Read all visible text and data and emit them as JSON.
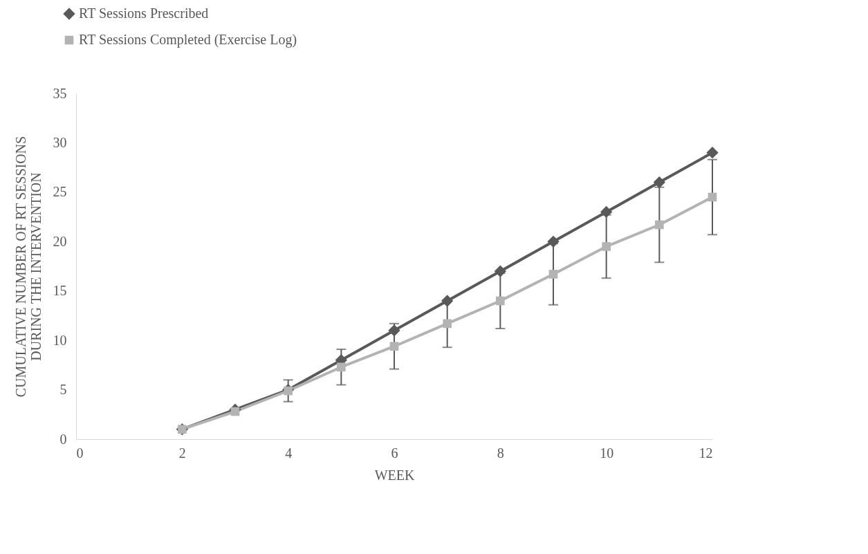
{
  "chart_data": {
    "type": "line",
    "xlabel": "WEEK",
    "ylabel": "CUMULATIVE NUMBER OF RT SESSIONS DURING THE INTERVENTION",
    "x": [
      2,
      3,
      4,
      5,
      6,
      7,
      8,
      9,
      10,
      11,
      12
    ],
    "series": [
      {
        "name": "RT Sessions Prescribed",
        "color": "#595959",
        "marker": "diamond",
        "values": [
          1,
          3,
          5,
          8,
          11,
          14,
          17,
          20,
          23,
          26,
          29
        ]
      },
      {
        "name": "RT Sessions Completed (Exercise Log)",
        "color": "#b3b3b3",
        "marker": "square",
        "values": [
          1,
          2.8,
          4.9,
          7.3,
          9.4,
          11.7,
          14,
          16.7,
          19.5,
          21.7,
          24.5
        ],
        "errors": [
          null,
          null,
          1.1,
          1.8,
          2.3,
          2.4,
          2.8,
          3.1,
          3.2,
          3.8,
          3.8
        ]
      }
    ],
    "xlim": [
      0,
      12
    ],
    "xticks": [
      0,
      2,
      4,
      6,
      8,
      10,
      12
    ],
    "ylim": [
      0,
      35
    ],
    "yticks": [
      0,
      5,
      10,
      15,
      20,
      25,
      30,
      35
    ],
    "grid": false,
    "legend": "top left",
    "line_style": "solid"
  }
}
